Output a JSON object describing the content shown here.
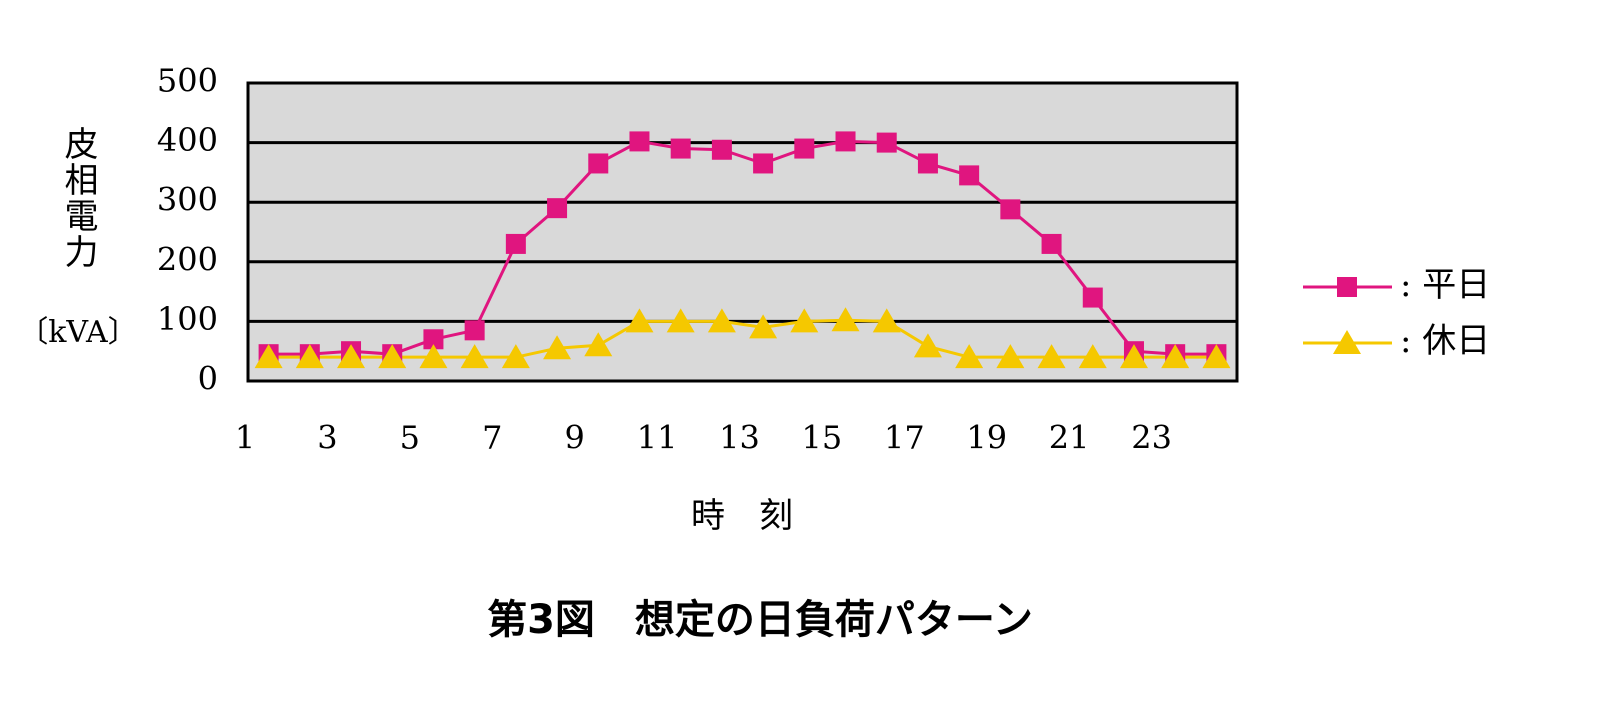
{
  "chart_data": {
    "type": "line",
    "title": "第3図　想定の日負荷パターン",
    "y_label": "皮相電力",
    "y_unit": "〔kVA〕",
    "x_label": "時　刻",
    "categories": [
      "1",
      null,
      "3",
      null,
      "5",
      null,
      "7",
      null,
      "9",
      null,
      "11",
      null,
      "13",
      null,
      "15",
      null,
      "17",
      null,
      "19",
      null,
      "21",
      null,
      "23",
      null
    ],
    "series": [
      {
        "name": ": 平日",
        "color": "#e0157f",
        "marker": "square",
        "values": [
          45,
          45,
          50,
          45,
          70,
          85,
          230,
          290,
          365,
          402,
          390,
          388,
          365,
          390,
          402,
          400,
          365,
          345,
          288,
          230,
          140,
          50,
          45,
          45
        ]
      },
      {
        "name": ": 休日",
        "color": "#f5c800",
        "marker": "triangle",
        "values": [
          40,
          40,
          40,
          40,
          40,
          40,
          40,
          55,
          60,
          100,
          100,
          100,
          90,
          100,
          102,
          100,
          58,
          40,
          40,
          40,
          40,
          40,
          40,
          40
        ]
      }
    ],
    "ylim": [
      0,
      500
    ],
    "yticks": [
      0,
      100,
      200,
      300,
      400,
      500
    ],
    "grid": true
  }
}
